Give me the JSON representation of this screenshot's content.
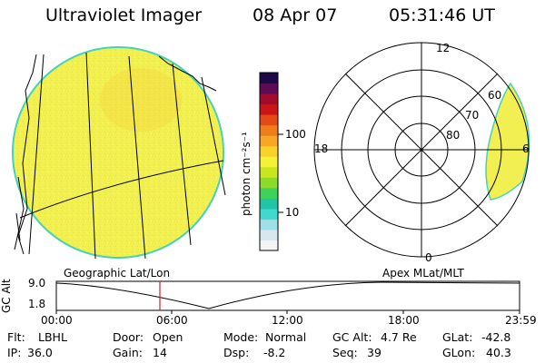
{
  "header": {
    "instrument": "Ultraviolet Imager",
    "date": "08 Apr 07",
    "time": "05:31:46 UT"
  },
  "colorbar": {
    "unit_label": "photon cm⁻²s⁻¹",
    "tick_100": "100",
    "tick_10": "10",
    "colors": [
      "#f4f4f4",
      "#d8e6ee",
      "#9fdfe8",
      "#40d8cf",
      "#21c5a5",
      "#3fd15a",
      "#8cda2a",
      "#c9e51d",
      "#f3f238",
      "#f7d22a",
      "#f7a625",
      "#f07c1b",
      "#e44a18",
      "#cc1616",
      "#a30a2b",
      "#5e0a55",
      "#1a0a4a"
    ]
  },
  "left_panel": {
    "label": "Geographic Lat/Lon",
    "disk_color": "#f1ef52"
  },
  "polar_plot": {
    "label": "Apex MLat/MLT",
    "mlt_12": "12",
    "mlt_18": "18",
    "mlt_6": "6",
    "mlt_0": "0",
    "mlat_60": "60",
    "mlat_70": "70",
    "mlat_80": "80"
  },
  "altitude_strip": {
    "ylabel": "GC Alt",
    "ytick_top": "9.0",
    "ytick_bottom": "1.8",
    "xticks": [
      "00:00",
      "06:00",
      "12:00",
      "18:00",
      "23:59"
    ],
    "marker_color": "#dd1f1f"
  },
  "info": {
    "flt_label": "Flt:",
    "flt_value": "LBHL",
    "door_label": "Door:",
    "door_value": "Open",
    "mode_label": "Mode:",
    "mode_value": "Normal",
    "gcalt_label": "GC Alt:",
    "gcalt_value": "4.7 Re",
    "glat_label": "GLat:",
    "glat_value": "-42.8",
    "ip_label": "IP:",
    "ip_value": "36.0",
    "gain_label": "Gain:",
    "gain_value": "14",
    "dsp_label": "Dsp:",
    "dsp_value": "-8.2",
    "seq_label": "Seq:",
    "seq_value": "39",
    "glon_label": "GLon:",
    "glon_value": "40.3"
  }
}
